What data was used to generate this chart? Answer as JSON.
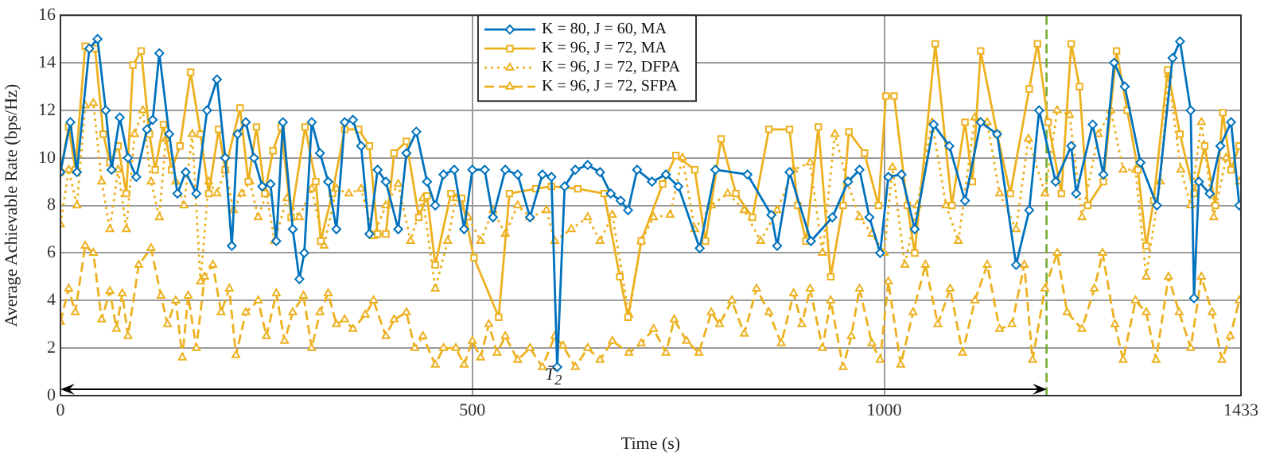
{
  "chart_data": {
    "type": "line",
    "xlabel": "Time (s)",
    "ylabel": "Average Achievable Rate (bps/Hz)",
    "xlim": [
      0,
      1433
    ],
    "xticks": [
      0,
      500,
      1000,
      1433
    ],
    "ylim": [
      0,
      16
    ],
    "yticks": [
      0,
      2,
      4,
      6,
      8,
      10,
      12,
      14,
      16
    ],
    "grid": true,
    "legend": "top",
    "ref_lines": [
      {
        "axis": "x",
        "value": 1197,
        "color": "#77ac30",
        "line_style": "dashed"
      }
    ],
    "annotations": [
      "T̄$_{2}$"
    ],
    "series": [
      {
        "name": "K = 80, J = 60, MA",
        "color": "#0072bd",
        "marker": "diamond",
        "line_style": "solid",
        "x": [
          0,
          12,
          20,
          35,
          45,
          55,
          62,
          72,
          82,
          92,
          105,
          112,
          120,
          132,
          142,
          152,
          165,
          178,
          190,
          200,
          208,
          215,
          225,
          235,
          245,
          255,
          262,
          270,
          282,
          290,
          296,
          305,
          315,
          325,
          335,
          345,
          355,
          365,
          375,
          385,
          395,
          410,
          420,
          432,
          445,
          455,
          465,
          478,
          490,
          500,
          515,
          525,
          540,
          555,
          570,
          585,
          596,
          603,
          612,
          625,
          640,
          655,
          668,
          680,
          689,
          700,
          718,
          735,
          750,
          776,
          795,
          834,
          863,
          870,
          885,
          911,
          937,
          956,
          970,
          982,
          995,
          1005,
          1021,
          1037,
          1060,
          1079,
          1098,
          1117,
          1137,
          1160,
          1176,
          1188,
          1208,
          1227,
          1233,
          1253,
          1266,
          1279,
          1292,
          1311,
          1331,
          1350,
          1359,
          1372,
          1376,
          1382,
          1395,
          1408,
          1421,
          1431
        ],
        "values": [
          9.4,
          11.5,
          9.4,
          14.6,
          15,
          12,
          9.5,
          11.7,
          10,
          9.2,
          11.2,
          11.6,
          14.4,
          11,
          8.5,
          9.4,
          8.5,
          12,
          13.3,
          10,
          6.3,
          11,
          11.5,
          10,
          8.8,
          8.9,
          6.5,
          11.5,
          7,
          4.9,
          6,
          11.5,
          10.2,
          9,
          7,
          11.5,
          11.6,
          10.5,
          6.8,
          9.5,
          9,
          7,
          10.2,
          11.1,
          9,
          8,
          9.3,
          9.5,
          7,
          9.5,
          9.5,
          7.5,
          9.5,
          9.3,
          7.5,
          9.3,
          9.2,
          1.2,
          8.8,
          9.5,
          9.7,
          9.4,
          8.5,
          8.2,
          7.8,
          9.5,
          9,
          9.3,
          8.8,
          6.2,
          9.5,
          9.3,
          7.6,
          6.3,
          9.4,
          6.5,
          7.5,
          9,
          9.5,
          7.5,
          6,
          9.2,
          9.3,
          7,
          11.4,
          10.5,
          8.2,
          11.5,
          11,
          5.5,
          7.8,
          12,
          9,
          10.5,
          8.5,
          11.4,
          9.3,
          14,
          13,
          9.8,
          8,
          14.2,
          14.9,
          12,
          4.1,
          9,
          8.5,
          10.5,
          11.5,
          8
        ]
      },
      {
        "name": "K = 96, J = 72, MA",
        "color": "#edb120",
        "marker": "square",
        "line_style": "solid",
        "x": [
          0,
          10,
          18,
          30,
          42,
          52,
          60,
          70,
          80,
          88,
          98,
          108,
          115,
          125,
          135,
          145,
          158,
          170,
          180,
          192,
          200,
          218,
          228,
          238,
          248,
          258,
          268,
          280,
          297,
          310,
          316,
          330,
          345,
          362,
          375,
          385,
          395,
          405,
          420,
          435,
          445,
          455,
          474,
          487,
          502,
          532,
          545,
          577,
          596,
          628,
          660,
          679,
          689,
          705,
          731,
          747,
          770,
          783,
          802,
          820,
          840,
          860,
          885,
          895,
          905,
          920,
          935,
          950,
          957,
          976,
          993,
          1002,
          1012,
          1028,
          1037,
          1062,
          1082,
          1098,
          1107,
          1117,
          1137,
          1153,
          1176,
          1186,
          1199,
          1215,
          1227,
          1237,
          1247,
          1266,
          1282,
          1295,
          1308,
          1318,
          1327,
          1344,
          1359,
          1376,
          1389,
          1402,
          1411,
          1421,
          1431
        ],
        "values": [
          9.4,
          11.3,
          9.5,
          14.7,
          14.6,
          11,
          9.8,
          10.5,
          8.5,
          13.9,
          14.5,
          11,
          9.5,
          11.4,
          9.5,
          10.5,
          13.6,
          11,
          8.5,
          11.2,
          9.5,
          12.1,
          9,
          11.3,
          8.5,
          10.3,
          11.3,
          7.5,
          11.3,
          9,
          6.5,
          8.5,
          11.2,
          11.2,
          10.5,
          6.8,
          6.8,
          10.2,
          10.7,
          7.5,
          8.4,
          5.5,
          8.5,
          8.3,
          5.8,
          3.3,
          8.5,
          8.7,
          8.8,
          8.7,
          8.5,
          5,
          3.3,
          6.5,
          8.9,
          10.1,
          9.5,
          6.5,
          10.8,
          8.5,
          7.5,
          11.2,
          11.2,
          8,
          6.5,
          11.3,
          5,
          8,
          11.1,
          10.2,
          8,
          12.6,
          12.6,
          8,
          6,
          14.8,
          8,
          11.5,
          9,
          14.5,
          11,
          8.5,
          12.9,
          14.8,
          11.5,
          8.5,
          14.8,
          13,
          8,
          9,
          14.5,
          12,
          9.5,
          6.3,
          8.2,
          13.7,
          11,
          8.5,
          10.5,
          8,
          11.9,
          9.5,
          10.5
        ]
      },
      {
        "name": "K = 96, J = 72, DFPA",
        "color": "#edb120",
        "marker": "triangle",
        "line_style": "dotted",
        "x": [
          0,
          10,
          20,
          30,
          40,
          50,
          60,
          70,
          80,
          90,
          100,
          110,
          120,
          128,
          140,
          150,
          160,
          170,
          180,
          190,
          200,
          210,
          220,
          230,
          240,
          250,
          260,
          275,
          290,
          305,
          320,
          335,
          350,
          365,
          380,
          395,
          410,
          425,
          440,
          455,
          470,
          480,
          495,
          510,
          525,
          540,
          555,
          570,
          590,
          600,
          620,
          640,
          655,
          670,
          690,
          705,
          720,
          740,
          755,
          770,
          790,
          810,
          830,
          850,
          870,
          890,
          910,
          925,
          940,
          955,
          970,
          985,
          1000,
          1010,
          1025,
          1040,
          1058,
          1075,
          1090,
          1110,
          1125,
          1140,
          1160,
          1175,
          1195,
          1210,
          1225,
          1240,
          1260,
          1275,
          1290,
          1305,
          1318,
          1335,
          1345,
          1360,
          1372,
          1385,
          1400,
          1415,
          1431
        ],
        "values": [
          7.2,
          9.5,
          8,
          12.2,
          12.3,
          9,
          7,
          9.5,
          7,
          11,
          12,
          9,
          7.5,
          10.8,
          9,
          8,
          11,
          4.8,
          9,
          8.5,
          9.5,
          7.8,
          8.5,
          9,
          7.5,
          8.5,
          6.5,
          8.3,
          7.5,
          8.7,
          6.3,
          8.7,
          8.5,
          8.7,
          6.7,
          8,
          8.9,
          6.5,
          8.3,
          4.5,
          6.5,
          8.3,
          7.5,
          6.5,
          7.8,
          6.8,
          8,
          7.5,
          7.8,
          6.5,
          7,
          7.5,
          6.5,
          7.6,
          3.4,
          6.5,
          7.5,
          7.6,
          10,
          7,
          8,
          8.5,
          7.8,
          6.5,
          7.8,
          9.5,
          9.8,
          6,
          11,
          9,
          7.5,
          6.8,
          6,
          9.6,
          5.5,
          8,
          11.5,
          8,
          6.5,
          11.7,
          11.5,
          8.5,
          7,
          10.8,
          8.5,
          12,
          11.8,
          7.5,
          11,
          12,
          9.5,
          9.5,
          5,
          9,
          13.5,
          9.5,
          8,
          11.5,
          7.5,
          10,
          9
        ]
      },
      {
        "name": "K = 96, J = 72, SFPA",
        "color": "#edb120",
        "marker": "triangle",
        "line_style": "dashed",
        "x": [
          0,
          10,
          18,
          30,
          40,
          50,
          60,
          68,
          75,
          82,
          95,
          110,
          122,
          130,
          140,
          148,
          155,
          165,
          175,
          185,
          195,
          205,
          213,
          225,
          240,
          250,
          262,
          272,
          282,
          295,
          305,
          315,
          325,
          335,
          345,
          355,
          370,
          380,
          395,
          405,
          420,
          430,
          440,
          455,
          465,
          480,
          490,
          500,
          510,
          520,
          530,
          540,
          555,
          570,
          585,
          600,
          610,
          625,
          640,
          655,
          670,
          690,
          705,
          720,
          735,
          745,
          760,
          775,
          790,
          800,
          815,
          830,
          845,
          860,
          875,
          890,
          900,
          910,
          925,
          935,
          950,
          960,
          970,
          985,
          995,
          1005,
          1020,
          1035,
          1050,
          1065,
          1080,
          1095,
          1110,
          1125,
          1140,
          1155,
          1170,
          1180,
          1195,
          1210,
          1222,
          1240,
          1255,
          1265,
          1280,
          1290,
          1305,
          1318,
          1330,
          1345,
          1358,
          1372,
          1385,
          1398,
          1410,
          1420,
          1431
        ],
        "values": [
          3.1,
          4.5,
          3.5,
          6.3,
          6,
          3.2,
          4.4,
          2.8,
          4.3,
          2.5,
          5.5,
          6.2,
          4.2,
          3,
          4,
          1.6,
          4.2,
          2,
          5,
          5.5,
          3.5,
          4.5,
          1.7,
          3.5,
          4,
          2.5,
          4.3,
          2.3,
          3.5,
          4.2,
          2,
          3.5,
          4.3,
          3,
          3.2,
          2.8,
          3.4,
          4,
          2.5,
          3.2,
          3.5,
          2,
          2.5,
          1.3,
          2,
          2,
          1.3,
          2.3,
          1.6,
          3,
          1.8,
          2.5,
          1.5,
          2,
          1.2,
          2.5,
          2.1,
          1.2,
          2,
          1.5,
          2.3,
          1.8,
          2.2,
          2.8,
          1.8,
          3.2,
          2.3,
          1.8,
          3.5,
          3,
          4,
          2.6,
          4.5,
          3.5,
          2.2,
          4.3,
          3,
          4.5,
          2,
          4,
          1.2,
          2.5,
          4.5,
          2.2,
          1.5,
          4.8,
          1.3,
          3.5,
          5.5,
          3,
          4.5,
          1.8,
          4,
          5.5,
          2.8,
          3,
          5.5,
          1.5,
          4.5,
          6,
          3.5,
          2.8,
          4.5,
          6,
          3,
          1.5,
          4,
          3.5,
          1.5,
          5,
          3.5,
          2,
          5,
          3.5,
          1.5,
          2.5,
          4
        ]
      }
    ]
  }
}
